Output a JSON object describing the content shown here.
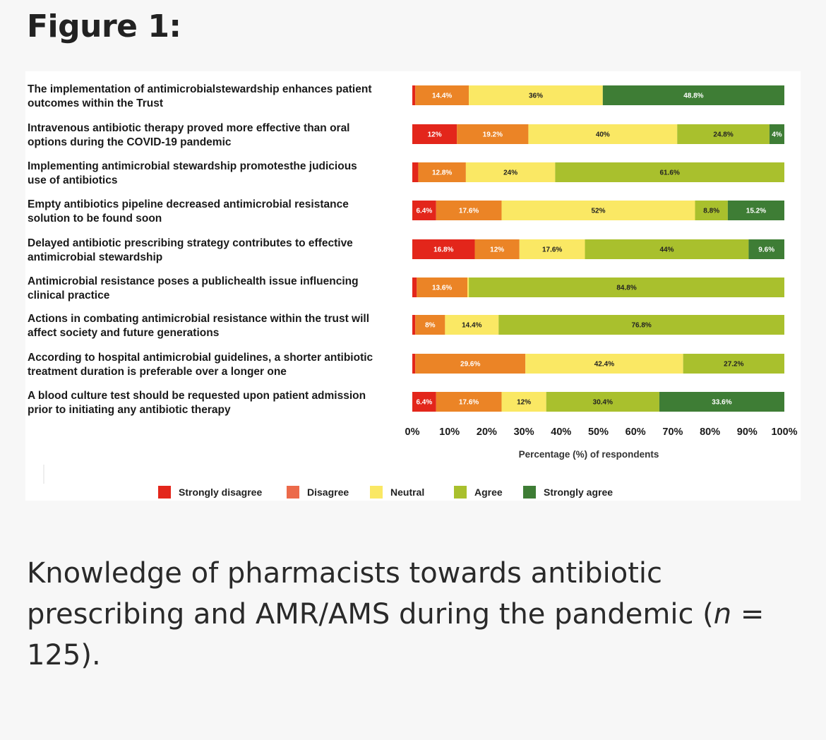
{
  "figure_title": "Figure 1:",
  "caption": {
    "pre": "Knowledge of pharmacists towards antibiotic prescribing and AMR/AMS during the pandemic (",
    "n": "n",
    "post": " = 125)."
  },
  "colors": {
    "strongly_disagree": "#e3261b",
    "disagree": "#eb8426",
    "neutral": "#fae864",
    "agree": "#a9c02d",
    "strongly_agree": "#3e7d35",
    "legend_disagree": "#ec6a4a",
    "text": "#1a1a1a"
  },
  "chart_data": {
    "type": "bar",
    "orientation": "horizontal",
    "stacked": true,
    "xlabel": "Percentage (%) of respondents",
    "xlim": [
      0,
      100
    ],
    "x_ticks": [
      "0%",
      "10%",
      "20%",
      "30%",
      "40%",
      "50%",
      "60%",
      "70%",
      "80%",
      "90%",
      "100%"
    ],
    "legend_position": "bottom",
    "categories": [
      [
        "The implementation of antimicrobialstewardship enhances patient",
        "outcomes within the Trust"
      ],
      [
        "Intravenous antibiotic therapy proved more effective than oral",
        "options during the COVID-19 pandemic"
      ],
      [
        "Implementing antimicrobial stewardship promotesthe judicious",
        "use of antibiotics"
      ],
      [
        "Empty antibiotics pipeline decreased antimicrobial resistance",
        "solution to be found soon"
      ],
      [
        "Delayed antibiotic prescribing strategy contributes to effective",
        "antimicrobial stewardship"
      ],
      [
        "Antimicrobial resistance poses a publichealth issue influencing",
        "clinical practice"
      ],
      [
        "Actions in combating antimicrobial resistance within the trust will",
        "affect society and future generations"
      ],
      [
        "According to hospital antimicrobial guidelines, a shorter antibiotic",
        "treatment duration is preferable over a longer one"
      ],
      [
        "A blood culture test should be requested upon patient admission",
        "prior to initiating any antibiotic therapy"
      ]
    ],
    "series": [
      {
        "name": "Strongly disagree",
        "key": "strongly_disagree",
        "values": [
          0.8,
          12,
          1.6,
          6.4,
          16.8,
          1.2,
          0.8,
          0.8,
          6.4
        ],
        "labels": [
          "",
          "12%",
          "",
          "6.4%",
          "16.8%",
          "",
          "",
          "",
          "6.4%"
        ]
      },
      {
        "name": "Disagree",
        "key": "disagree",
        "values": [
          14.4,
          19.2,
          12.8,
          17.6,
          12,
          13.6,
          8,
          29.6,
          17.6
        ],
        "labels": [
          "14.4%",
          "19.2%",
          "12.8%",
          "17.6%",
          "12%",
          "13.6%",
          "8%",
          "29.6%",
          "17.6%"
        ]
      },
      {
        "name": "Neutral",
        "key": "neutral",
        "values": [
          36,
          40,
          24,
          52,
          17.6,
          0.4,
          14.4,
          42.4,
          12
        ],
        "labels": [
          "36%",
          "40%",
          "24%",
          "52%",
          "17.6%",
          "",
          "14.4%",
          "42.4%",
          "12%"
        ]
      },
      {
        "name": "Agree",
        "key": "agree",
        "values": [
          0,
          24.8,
          61.6,
          8.8,
          44,
          84.8,
          76.8,
          27.2,
          30.4
        ],
        "labels": [
          "",
          "24.8%",
          "61.6%",
          "8.8%",
          "44%",
          "84.8%",
          "76.8%",
          "27.2%",
          "30.4%"
        ]
      },
      {
        "name": "Strongly agree",
        "key": "strongly_agree",
        "values": [
          48.8,
          4,
          0,
          15.2,
          9.6,
          0,
          0,
          0,
          33.6
        ],
        "labels": [
          "48.8%",
          "4%",
          "",
          "15.2%",
          "9.6%",
          "",
          "",
          "",
          "33.6%"
        ]
      }
    ],
    "legend": [
      {
        "name": "Strongly disagree",
        "color_key": "strongly_disagree"
      },
      {
        "name": "Disagree",
        "color_key": "legend_disagree"
      },
      {
        "name": "Neutral",
        "color_key": "neutral"
      },
      {
        "name": "Agree",
        "color_key": "agree"
      },
      {
        "name": "Strongly agree",
        "color_key": "strongly_agree"
      }
    ]
  }
}
